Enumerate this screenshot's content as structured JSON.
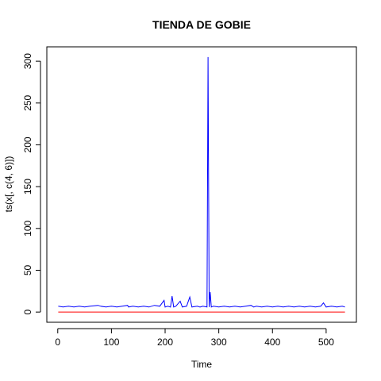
{
  "chart_data": {
    "type": "line",
    "title": "TIENDA DE GOBIE",
    "xlabel": "Time",
    "ylabel": "ts(x[, c(4, 6)])",
    "xlim": [
      1,
      535
    ],
    "ylim": [
      0,
      305
    ],
    "xticks": [
      "0",
      "100",
      "200",
      "300",
      "400",
      "500"
    ],
    "yticks": [
      "0",
      "50",
      "100",
      "150",
      "200",
      "250",
      "300"
    ],
    "grid": false,
    "legend": "none",
    "series": [
      {
        "color": "#0000ff",
        "x": [
          1,
          10,
          20,
          30,
          40,
          50,
          60,
          75,
          80,
          90,
          100,
          110,
          120,
          130,
          132,
          140,
          150,
          160,
          170,
          180,
          190,
          198,
          200,
          205,
          210,
          213,
          216,
          220,
          228,
          232,
          240,
          246,
          250,
          260,
          265,
          270,
          278,
          280,
          282,
          284,
          286,
          290,
          300,
          310,
          320,
          330,
          340,
          350,
          360,
          365,
          370,
          380,
          390,
          400,
          410,
          420,
          430,
          440,
          450,
          460,
          470,
          480,
          490,
          495,
          500,
          510,
          520,
          530,
          535
        ],
        "y": [
          7,
          6,
          7,
          6,
          7,
          6,
          7,
          8,
          7,
          6,
          7,
          6,
          7,
          8,
          6,
          7,
          6,
          7,
          6,
          8,
          7,
          14,
          6,
          7,
          6,
          19,
          6,
          7,
          13,
          6,
          7,
          18,
          6,
          7,
          6,
          7,
          6,
          305,
          6,
          24,
          6,
          7,
          6,
          7,
          6,
          7,
          6,
          7,
          8,
          6,
          7,
          6,
          7,
          6,
          7,
          6,
          7,
          6,
          7,
          6,
          7,
          6,
          7,
          11,
          6,
          7,
          6,
          7,
          6
        ]
      },
      {
        "color": "#ff0000",
        "x": [
          1,
          535
        ],
        "y": [
          0,
          0
        ]
      }
    ]
  }
}
